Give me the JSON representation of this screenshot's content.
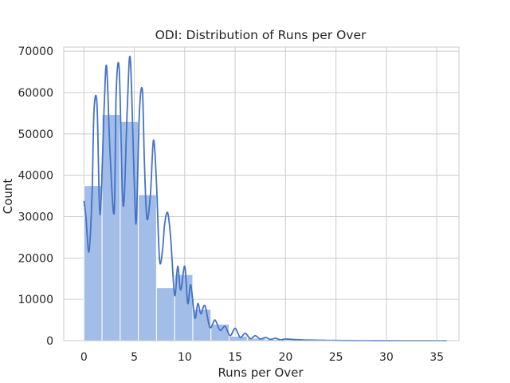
{
  "chart_data": {
    "type": "bar",
    "title": "ODI: Distribution of Runs per Over",
    "xlabel": "Runs per Over",
    "ylabel": "Count",
    "xlim": [
      -2,
      37.2
    ],
    "ylim": [
      0,
      71000
    ],
    "xticks": [
      0,
      5,
      10,
      15,
      20,
      25,
      30,
      35
    ],
    "yticks": [
      0,
      10000,
      20000,
      30000,
      40000,
      50000,
      60000,
      70000
    ],
    "grid": true,
    "bar_color": "#a2bde8",
    "line_color": "#4472c4",
    "bins": [
      {
        "x0": 0.0,
        "x1": 1.8,
        "count": 37500
      },
      {
        "x0": 1.8,
        "x1": 3.6,
        "count": 54700
      },
      {
        "x0": 3.6,
        "x1": 5.4,
        "count": 53000
      },
      {
        "x0": 5.4,
        "x1": 7.2,
        "count": 35300
      },
      {
        "x0": 7.2,
        "x1": 9.0,
        "count": 12800
      },
      {
        "x0": 9.0,
        "x1": 10.8,
        "count": 16000
      },
      {
        "x0": 10.8,
        "x1": 12.6,
        "count": 7600
      },
      {
        "x0": 12.6,
        "x1": 14.4,
        "count": 4000
      },
      {
        "x0": 14.4,
        "x1": 16.2,
        "count": 1100
      },
      {
        "x0": 16.2,
        "x1": 18.0,
        "count": 600
      },
      {
        "x0": 18.0,
        "x1": 19.8,
        "count": 350
      },
      {
        "x0": 19.8,
        "x1": 21.6,
        "count": 250
      },
      {
        "x0": 21.6,
        "x1": 23.4,
        "count": 150
      },
      {
        "x0": 23.4,
        "x1": 25.2,
        "count": 100
      },
      {
        "x0": 25.2,
        "x1": 27.0,
        "count": 60
      },
      {
        "x0": 27.0,
        "x1": 28.8,
        "count": 40
      },
      {
        "x0": 28.8,
        "x1": 30.6,
        "count": 25
      },
      {
        "x0": 30.6,
        "x1": 32.4,
        "count": 15
      },
      {
        "x0": 32.4,
        "x1": 34.2,
        "count": 10
      },
      {
        "x0": 34.2,
        "x1": 36.0,
        "count": 5
      }
    ],
    "kde": {
      "x": [
        0,
        0.2,
        0.5,
        0.8,
        1.0,
        1.3,
        1.6,
        2.0,
        2.25,
        2.6,
        3.0,
        3.2,
        3.5,
        3.8,
        4.0,
        4.3,
        4.6,
        5.0,
        5.2,
        5.5,
        5.8,
        6.0,
        6.25,
        6.6,
        6.9,
        7.2,
        7.5,
        7.8,
        8.0,
        8.3,
        8.6,
        9.0,
        9.3,
        9.6,
        10.0,
        10.3,
        10.6,
        11.0,
        11.3,
        11.6,
        12.0,
        12.5,
        13.0,
        13.5,
        14.0,
        14.5,
        15.0,
        15.5,
        16.0,
        16.5,
        17.0,
        17.5,
        18.0,
        18.5,
        19.0,
        19.5,
        20.0,
        21.0,
        22.0,
        23.0,
        24.0,
        25.0,
        26.0,
        28.0,
        30.0,
        33.0,
        36.0
      ],
      "y": [
        33800,
        30000,
        21500,
        35000,
        55500,
        57000,
        30500,
        56000,
        66300,
        45000,
        31000,
        60000,
        65700,
        37000,
        34500,
        56000,
        68200,
        38000,
        29000,
        55000,
        60500,
        43000,
        29500,
        35500,
        48500,
        38000,
        19500,
        22000,
        28000,
        31000,
        25000,
        11000,
        18000,
        12200,
        18000,
        9000,
        13500,
        5500,
        9000,
        6500,
        8500,
        3200,
        5000,
        2500,
        3500,
        1200,
        3000,
        800,
        1800,
        500,
        1200,
        400,
        800,
        300,
        600,
        200,
        400,
        250,
        150,
        120,
        80,
        60,
        40,
        20,
        10,
        5,
        0
      ]
    }
  }
}
